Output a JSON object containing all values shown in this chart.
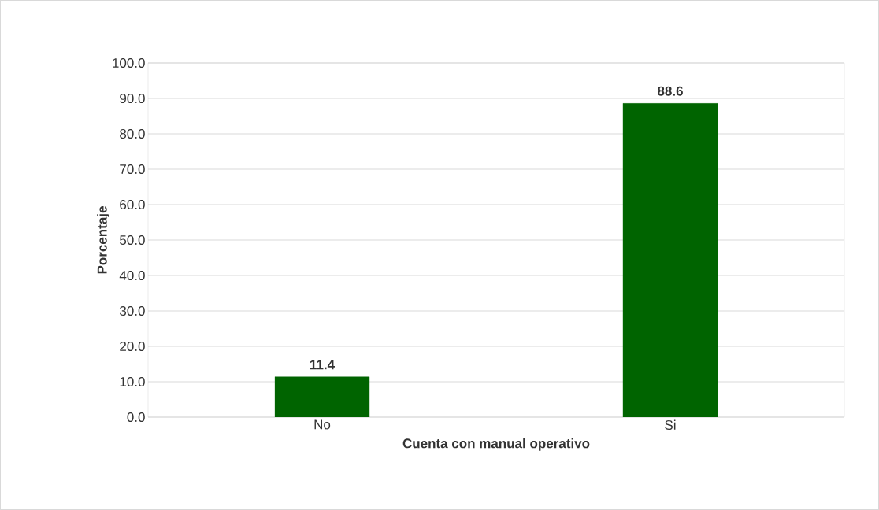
{
  "chart_data": {
    "type": "bar",
    "xlabel": "Cuenta con manual operativo",
    "ylabel": "Porcentaje",
    "categories": [
      "No",
      "Si"
    ],
    "values": [
      11.4,
      88.6
    ],
    "color": "#006400",
    "ylim": [
      0,
      100
    ],
    "yticks": [
      {
        "value": 0,
        "label": "0.0"
      },
      {
        "value": 10,
        "label": "10.0"
      },
      {
        "value": 20,
        "label": "20.0"
      },
      {
        "value": 30,
        "label": "30.0"
      },
      {
        "value": 40,
        "label": "40.0"
      },
      {
        "value": 50,
        "label": "50.0"
      },
      {
        "value": 60,
        "label": "60.0"
      },
      {
        "value": 70,
        "label": "70.0"
      },
      {
        "value": 80,
        "label": "80.0"
      },
      {
        "value": 90,
        "label": "90.0"
      },
      {
        "value": 100,
        "label": "100.0"
      }
    ],
    "grid": "y",
    "data_labels": true
  }
}
